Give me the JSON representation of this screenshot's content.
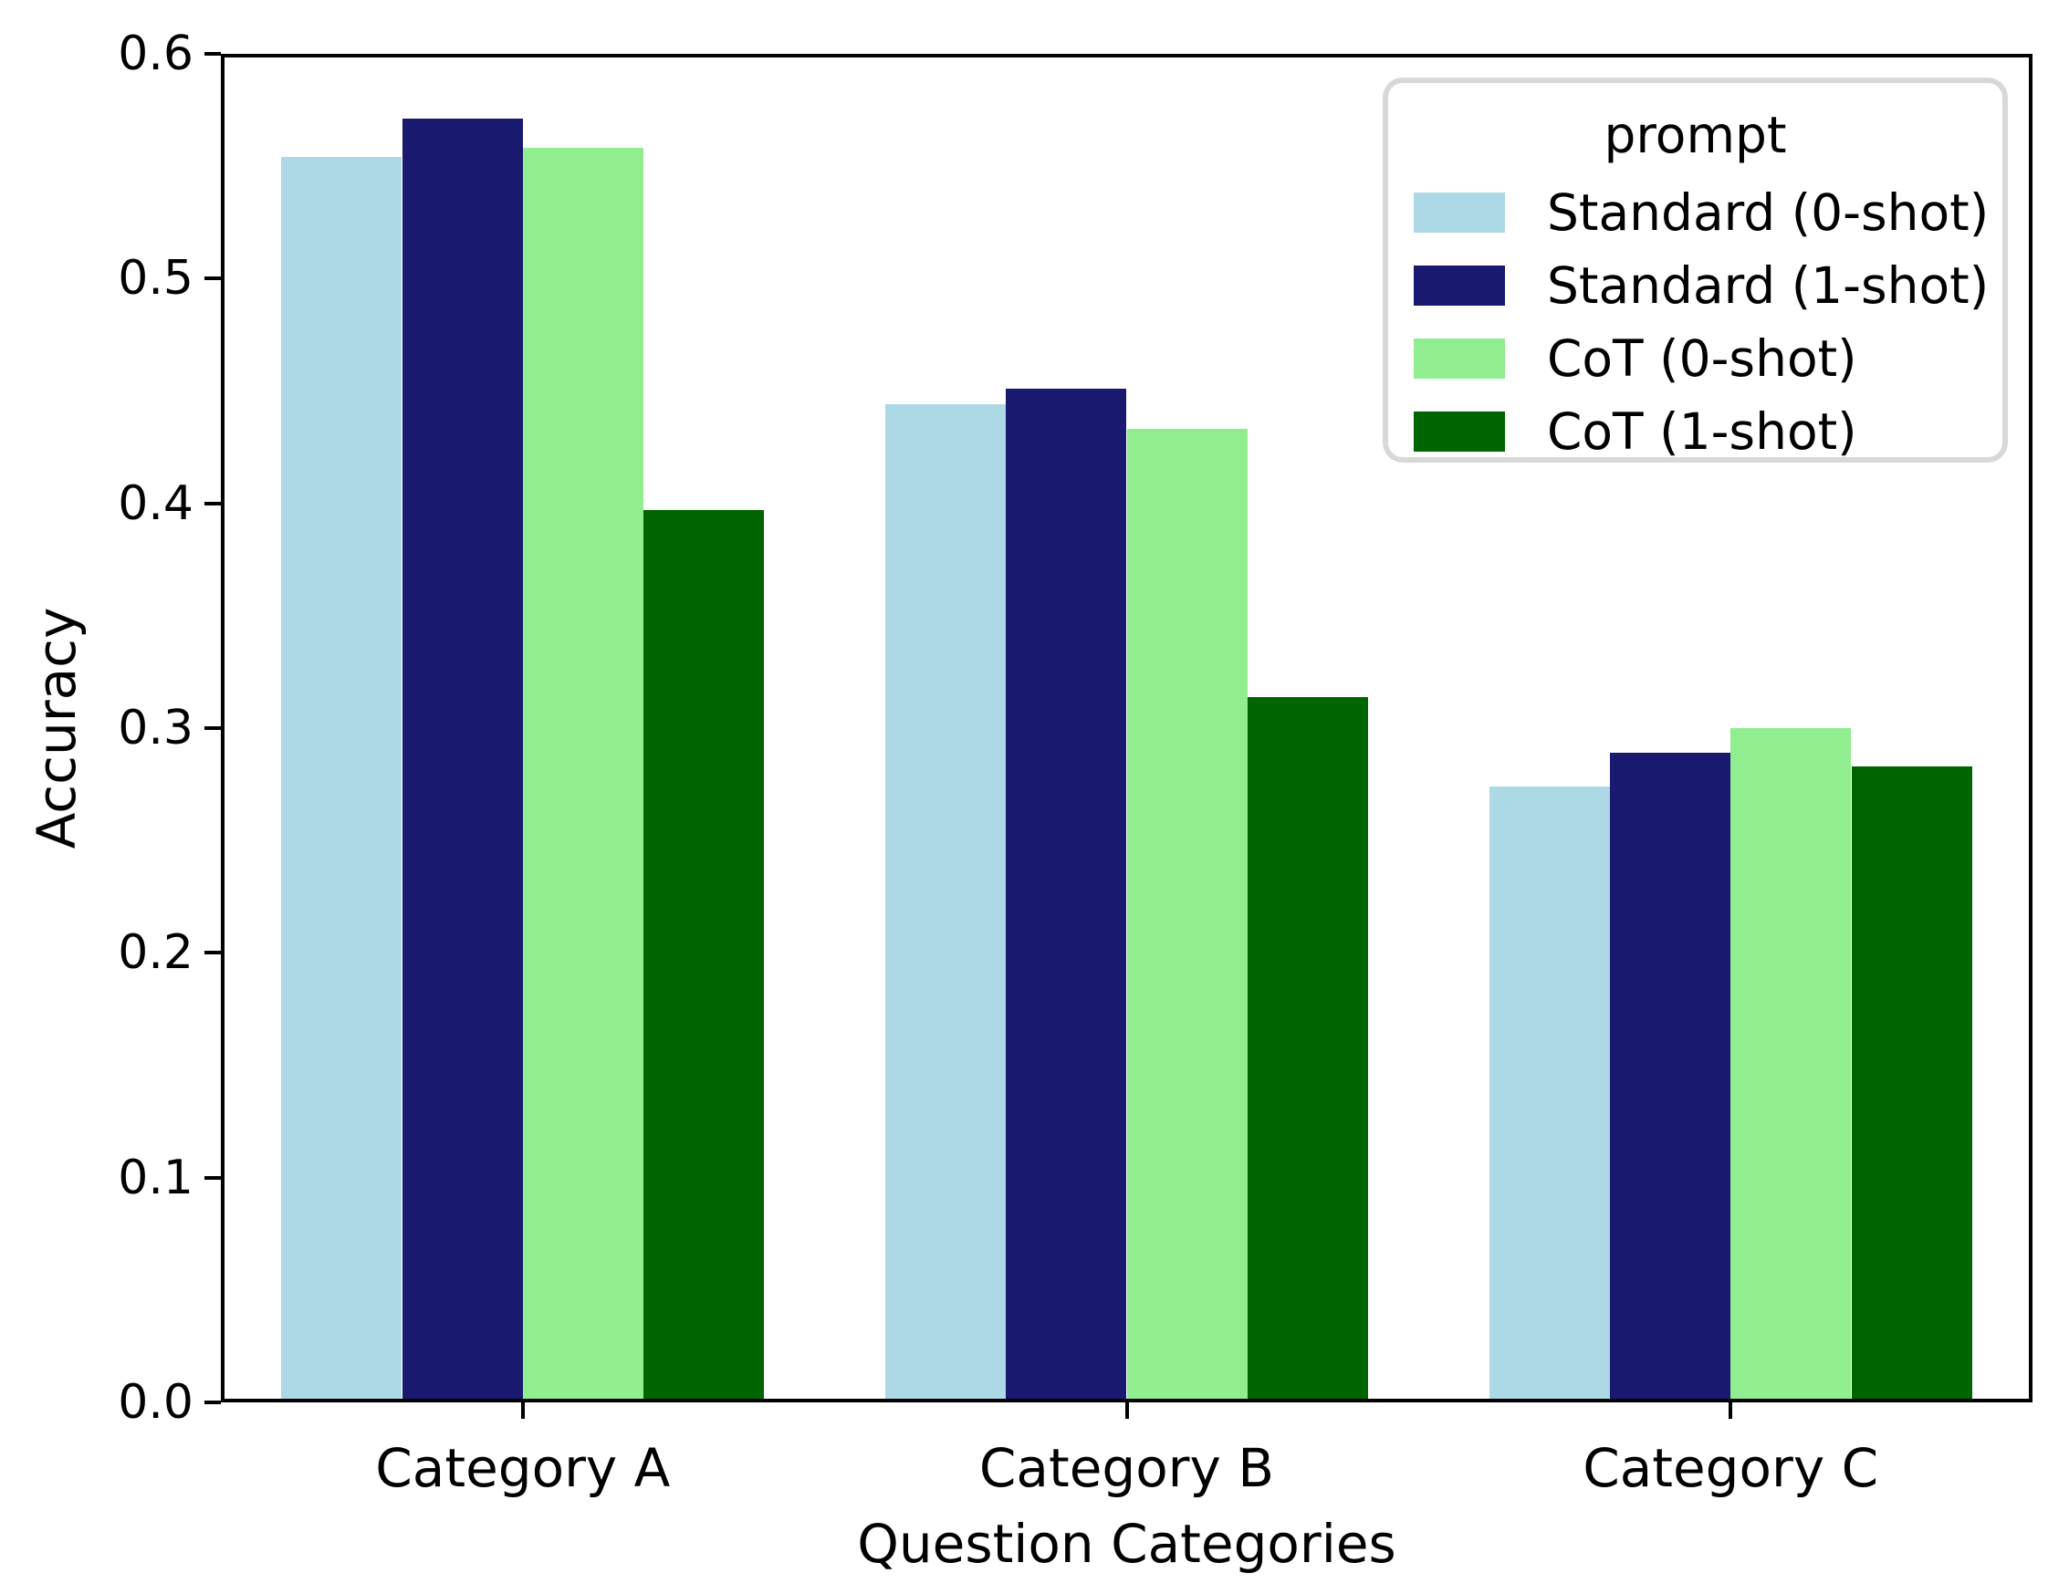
{
  "chart_data": {
    "type": "bar",
    "title": "",
    "xlabel": "Question Categories",
    "ylabel": "Accuracy",
    "categories": [
      "Category A",
      "Category B",
      "Category C"
    ],
    "series": [
      {
        "name": "Standard (0-shot)",
        "color": "#ADD8E6",
        "values": [
          0.554,
          0.444,
          0.274
        ]
      },
      {
        "name": "Standard (1-shot)",
        "color": "#191970",
        "values": [
          0.571,
          0.451,
          0.289
        ]
      },
      {
        "name": "CoT (0-shot)",
        "color": "#90EE90",
        "values": [
          0.558,
          0.433,
          0.3
        ]
      },
      {
        "name": "CoT (1-shot)",
        "color": "#006400",
        "values": [
          0.397,
          0.314,
          0.283
        ]
      }
    ],
    "ylim": [
      0.0,
      0.6
    ],
    "yticks": [
      "0.0",
      "0.1",
      "0.2",
      "0.3",
      "0.4",
      "0.5",
      "0.6"
    ],
    "grid": false,
    "group_width_fraction": 0.8,
    "legend": {
      "title": "prompt",
      "position": "upper right"
    }
  }
}
